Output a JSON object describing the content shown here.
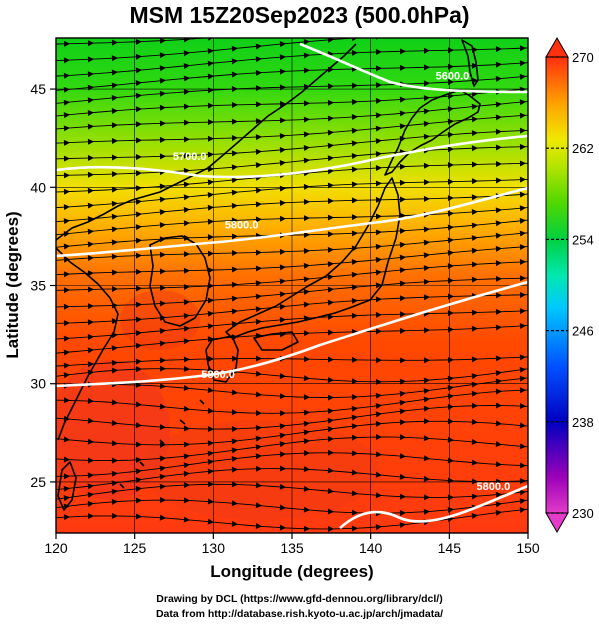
{
  "title": "MSM 15Z20Sep2023 (500.0hPa)",
  "map": {
    "xlabel": "Longitude (degrees)",
    "ylabel": "Latitude  (degrees)",
    "xlim": [
      120,
      150
    ],
    "ylim": [
      22.4,
      47.6
    ],
    "xticks": [
      "120",
      "125",
      "130",
      "135",
      "140",
      "145",
      "150"
    ],
    "yticks": [
      "25",
      "30",
      "35",
      "40",
      "45"
    ],
    "grid_lon": [
      120,
      125,
      130,
      135,
      140,
      145,
      150
    ],
    "grid_lat": [
      25,
      30,
      35,
      40,
      45
    ],
    "field": "temperature",
    "contour_labels": [
      {
        "text": "5600.0",
        "lon": 145.2,
        "lat": 45.7
      },
      {
        "text": "5700.0",
        "lon": 128.5,
        "lat": 41.6
      },
      {
        "text": "5800.0",
        "lon": 131.8,
        "lat": 38.1
      },
      {
        "text": "5800.0",
        "lon": 130.3,
        "lat": 30.5
      },
      {
        "text": "5800.0",
        "lon": 147.8,
        "lat": 24.8
      }
    ]
  },
  "colorbar": {
    "min": 230,
    "max": 270,
    "ticks": [
      "270",
      "262",
      "254",
      "246",
      "238",
      "230"
    ],
    "tick_values": [
      270,
      262,
      254,
      246,
      238,
      230
    ],
    "colors": [
      "#e23cc8",
      "#8a00b0",
      "#0000c8",
      "#0050ff",
      "#00c8ff",
      "#00e8b0",
      "#00d040",
      "#50d800",
      "#b4e400",
      "#f0e800",
      "#ffa000",
      "#ff5000",
      "#f02818"
    ]
  },
  "credits": {
    "line1": "Drawing by DCL (https://www.gfd-dennou.org/library/dcl/)",
    "line2": "Data from http://database.rish.kyoto-u.ac.jp/arch/jmadata/"
  }
}
